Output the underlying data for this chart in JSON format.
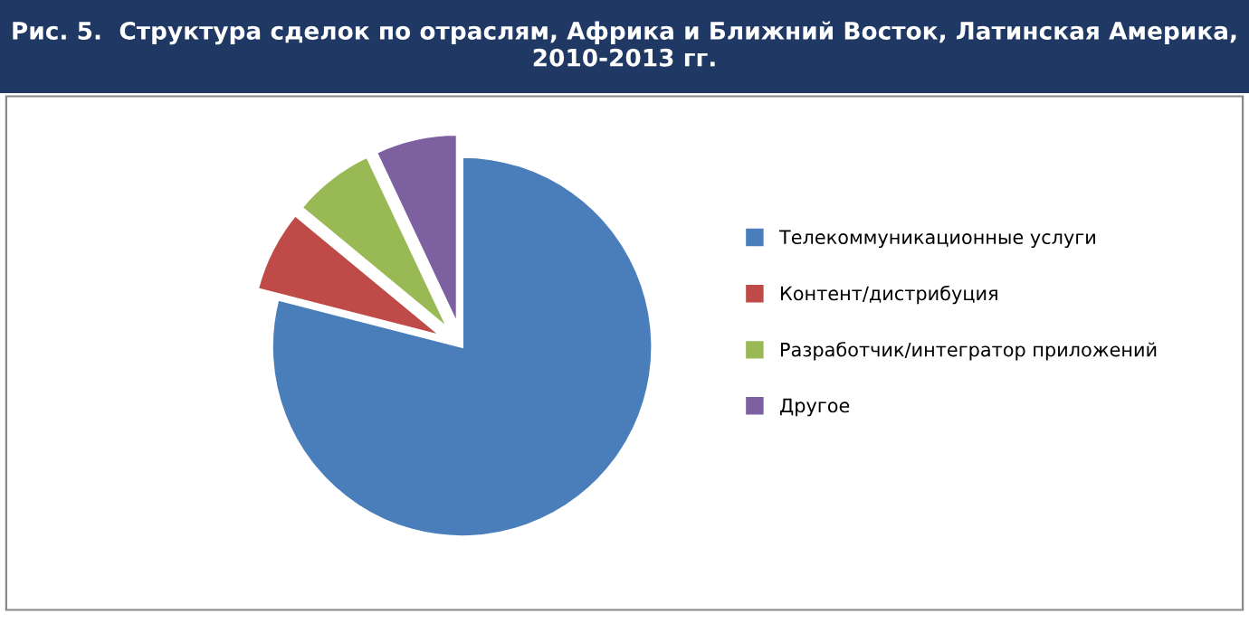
{
  "chart_data": {
    "type": "pie",
    "title": "Рис. 5.  Структура сделок по отраслям, Африка и Ближний Восток, Латинская Америка, 2010-2013 гг.",
    "categories": [
      "Телекоммуникационные услуги",
      "Контент/дистрибуция",
      "Разработчик/интегратор приложений",
      "Другое"
    ],
    "values": [
      79,
      7,
      7,
      7
    ],
    "colors": [
      "#4a7ebb",
      "#be4b48",
      "#98b954",
      "#7d60a0"
    ],
    "legend": "right"
  }
}
